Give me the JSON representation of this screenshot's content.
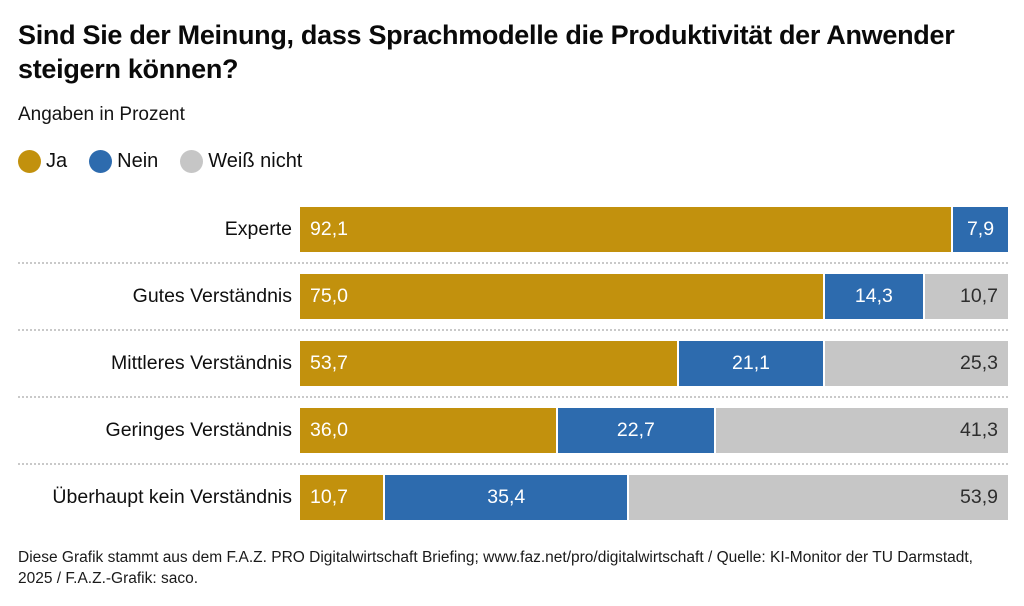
{
  "page": {
    "title": "Sind Sie der Meinung, dass Sprachmodelle die Produktivität der Anwender steigern können?",
    "subtitle": "Angaben in Prozent",
    "footer": "Diese Grafik stammt aus dem F.A.Z. PRO Digitalwirtschaft Briefing; www.faz.net/pro/digitalwirtschaft / Quelle: KI-Monitor der TU Darmstadt, 2025 / F.A.Z.-Grafik: saco."
  },
  "colors": {
    "ja": "#c2910d",
    "nein": "#2d6bae",
    "weiss_nicht": "#c6c6c6",
    "value_on_dark": "#ffffff",
    "value_on_light": "#2e2e2e",
    "separator_dots": "#c9c9c9"
  },
  "legend": [
    {
      "label": "Ja",
      "color": "#c2910d"
    },
    {
      "label": "Nein",
      "color": "#2d6bae"
    },
    {
      "label": "Weiß nicht",
      "color": "#c6c6c6"
    }
  ],
  "chart_data": {
    "type": "bar",
    "orientation": "horizontal",
    "stacked": true,
    "unit": "percent",
    "decimal_separator": ",",
    "title": "Sind Sie der Meinung, dass Sprachmodelle die Produktivität der Anwender steigern können?",
    "subtitle": "Angaben in Prozent",
    "legend_position": "top",
    "grid": false,
    "xlim": [
      0,
      100
    ],
    "value_labels": true,
    "categories": [
      "Experte",
      "Gutes Verständnis",
      "Mittleres Verständnis",
      "Geringes Verständnis",
      "Überhaupt kein Verständnis"
    ],
    "series": [
      {
        "name": "Ja",
        "color": "#c2910d",
        "values": [
          92.1,
          75.0,
          53.7,
          36.0,
          10.7
        ]
      },
      {
        "name": "Nein",
        "color": "#2d6bae",
        "values": [
          7.9,
          14.3,
          21.1,
          22.7,
          35.4
        ]
      },
      {
        "name": "Weiß nicht",
        "color": "#c6c6c6",
        "values": [
          0,
          10.7,
          25.3,
          41.3,
          53.9
        ]
      }
    ]
  }
}
